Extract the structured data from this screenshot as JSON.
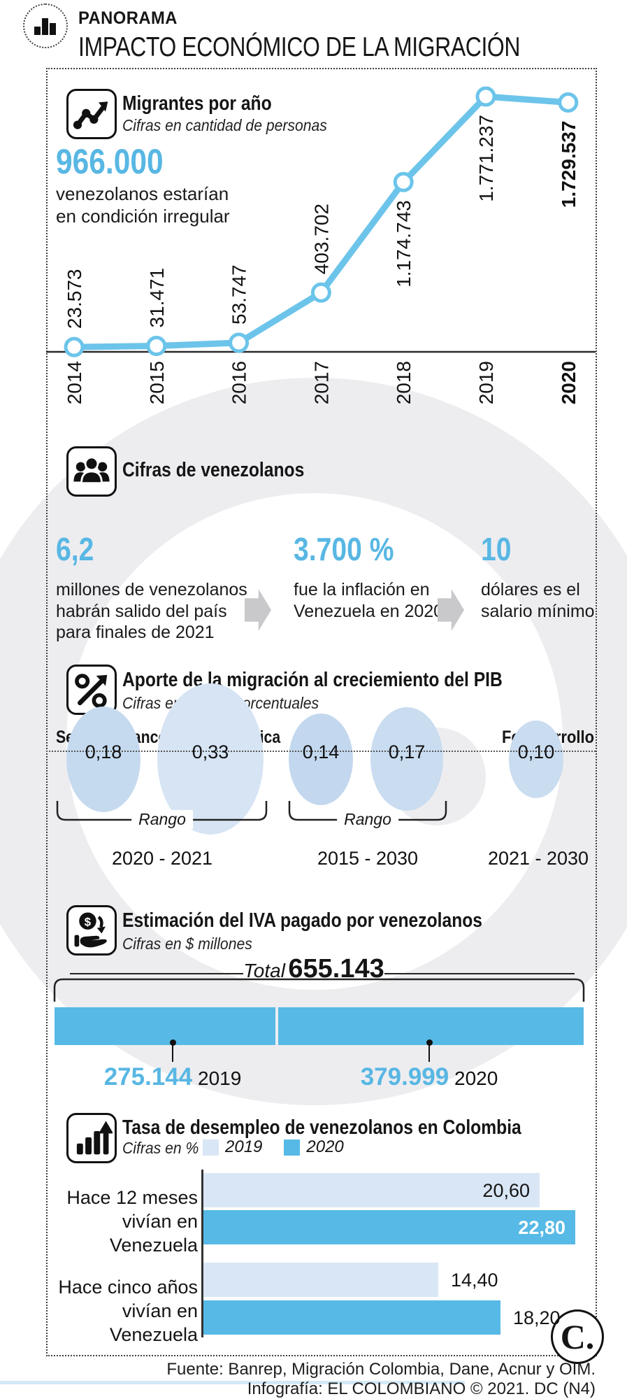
{
  "brand": {
    "kicker": "PANORAMA",
    "title": "IMPACTO ECONÓMICO DE LA MIGRACIÓN"
  },
  "colors": {
    "line_blue": "#6cc4ea",
    "accent_blue": "#58b7e3",
    "bar_blue": "#57b9e5",
    "pale_blue": "#d9e6f5",
    "bubble_blue": "#c9dcf0",
    "watermark_gray": "#ededf0"
  },
  "sections": {
    "migrants": {
      "title": "Migrantes por año",
      "subtitle": "Cifras en cantidad de personas",
      "highlight_value": "966.000",
      "highlight_desc": "venezolanos estarían\nen condición irregular"
    },
    "figures": {
      "title": "Cifras de venezolanos",
      "items": [
        {
          "value": "6,2",
          "desc": "millones de venezolanos\nhabrán salido del país\npara finales de 2021"
        },
        {
          "value": "3.700 %",
          "desc": "fue la inflación en\nVenezuela en 2020"
        },
        {
          "value": "10",
          "desc": "dólares es el\nsalario mínimo"
        }
      ]
    },
    "pib": {
      "title": "Aporte de la migración al creciemiento del PIB",
      "subtitle": "Cifras en puntos porcentuales",
      "left_label": "Según el Banco de la República",
      "right_label": "Fedesarrollo",
      "range_word": "Rango",
      "ranges": [
        "2020 - 2021",
        "2015 - 2030",
        "2021 - 2030"
      ]
    },
    "iva": {
      "title": "Estimación del IVA pagado por venezolanos",
      "subtitle": "Cifras en $ millones",
      "total_word": "Total",
      "total_value": "655.143"
    },
    "unemployment": {
      "title": "Tasa de desempleo de venezolanos en Colombia",
      "subtitle": "Cifras en %",
      "legend": [
        "2019",
        "2020"
      ],
      "groups": [
        {
          "label": "Hace 12 meses\nvivían en Venezuela"
        },
        {
          "label": "Hace cinco años\nvivían en Venezuela"
        }
      ]
    }
  },
  "footer": {
    "source": "Fuente: Banrep, Migración Colombia, Dane, Acnur y OIM.",
    "credit": "Infografía: EL COLOMBIANO © 2021. DC (N4)",
    "corner_logo": "C."
  },
  "chart_data": [
    {
      "id": "migrants_line",
      "type": "line",
      "title": "Migrantes por año",
      "note": "Cifras en cantidad de personas",
      "x": [
        "2014",
        "2015",
        "2016",
        "2017",
        "2018",
        "2019",
        "2020"
      ],
      "values": [
        23573,
        31471,
        53747,
        403702,
        1174743,
        1771237,
        1729537
      ],
      "labels": [
        "23.573",
        "31.471",
        "53.747",
        "403.702",
        "1.174.743",
        "1.771.237",
        "1.729.537"
      ],
      "ylim": [
        0,
        1771237
      ],
      "emphasized_x": "2020",
      "grid": false,
      "legend_position": "none"
    },
    {
      "id": "pib_bubbles",
      "type": "bubble",
      "title": "Aporte de la migración al creciemiento del PIB",
      "note": "Cifras en puntos porcentuales",
      "sources": [
        "Según el Banco de la República",
        "Fedesarrollo"
      ],
      "points": [
        {
          "label": "0,18",
          "value": 0.18,
          "range": "2020 - 2021",
          "source": "Banco de la República"
        },
        {
          "label": "0,33",
          "value": 0.33,
          "range": "2020 - 2021",
          "source": "Banco de la República"
        },
        {
          "label": "0,14",
          "value": 0.14,
          "range": "2015 - 2030",
          "source": "Banco de la República"
        },
        {
          "label": "0,17",
          "value": 0.17,
          "range": "2015 - 2030",
          "source": "Banco de la República"
        },
        {
          "label": "0,10",
          "value": 0.1,
          "range": "2021 - 2030",
          "source": "Fedesarrollo"
        }
      ]
    },
    {
      "id": "iva_stacked_bar",
      "type": "bar",
      "title": "Estimación del IVA pagado por venezolanos",
      "note": "Cifras en $ millones",
      "total": 655143,
      "total_label": "655.143",
      "categories": [
        "2019",
        "2020"
      ],
      "values": [
        275144,
        379999
      ],
      "labels": [
        "275.144",
        "379.999"
      ]
    },
    {
      "id": "unemployment_bars",
      "type": "bar",
      "title": "Tasa de desempleo de venezolanos en Colombia",
      "note": "Cifras en %",
      "categories": [
        "Hace 12 meses vivían en Venezuela",
        "Hace cinco años vivían en Venezuela"
      ],
      "series": [
        {
          "name": "2019",
          "values": [
            20.6,
            14.4
          ],
          "labels": [
            "20,60",
            "14,40"
          ]
        },
        {
          "name": "2020",
          "values": [
            22.8,
            18.2
          ],
          "labels": [
            "22,80",
            "18,20"
          ]
        }
      ],
      "xlim": [
        0,
        23.5
      ]
    }
  ]
}
